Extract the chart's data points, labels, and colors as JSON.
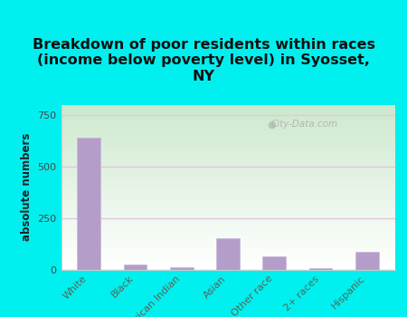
{
  "title": "Breakdown of poor residents within races\n(income below poverty level) in Syosset,\nNY",
  "ylabel": "absolute numbers",
  "categories": [
    "White",
    "Black",
    "American Indian",
    "Asian",
    "Other race",
    "2+ races",
    "Hispanic"
  ],
  "values": [
    640,
    25,
    10,
    150,
    65,
    5,
    85
  ],
  "bar_color": "#b59dca",
  "bar_edge_color": "#c8b8d8",
  "ylim": [
    0,
    800
  ],
  "yticks": [
    0,
    250,
    500,
    750
  ],
  "background_color": "#00f0f0",
  "plot_bg_top": "#cce8cc",
  "plot_bg_bottom": "#ffffff",
  "grid_color": "#e0c8e0",
  "watermark": "City-Data.com",
  "title_fontsize": 11.5,
  "label_fontsize": 8.5,
  "tick_fontsize": 8,
  "xtick_color": "#556655",
  "ytick_color": "#444444"
}
